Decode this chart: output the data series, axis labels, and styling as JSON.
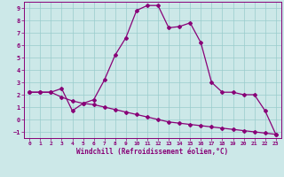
{
  "xlabel": "Windchill (Refroidissement éolien,°C)",
  "bg_color": "#cce8e8",
  "line_color": "#880077",
  "grid_color": "#99cccc",
  "curve1_x": [
    0,
    1,
    2,
    3,
    4,
    5,
    6,
    7,
    8,
    9,
    10,
    11,
    12,
    13,
    14,
    15,
    16,
    17,
    18,
    19,
    20,
    21,
    22,
    23
  ],
  "curve1_y": [
    2.2,
    2.2,
    2.2,
    2.5,
    0.7,
    1.3,
    1.6,
    3.2,
    5.2,
    6.6,
    8.8,
    9.2,
    9.2,
    7.4,
    7.5,
    7.8,
    6.2,
    3.0,
    2.2,
    2.2,
    2.0,
    2.0,
    0.7,
    -1.2
  ],
  "curve2_x": [
    0,
    1,
    2,
    3,
    4,
    5,
    6,
    7,
    8,
    9,
    10,
    11,
    12,
    13,
    14,
    15,
    16,
    17,
    18,
    19,
    20,
    21,
    22,
    23
  ],
  "curve2_y": [
    2.2,
    2.2,
    2.2,
    1.8,
    1.5,
    1.3,
    1.2,
    1.0,
    0.8,
    0.6,
    0.4,
    0.2,
    0.0,
    -0.2,
    -0.3,
    -0.4,
    -0.5,
    -0.6,
    -0.7,
    -0.8,
    -0.9,
    -1.0,
    -1.1,
    -1.2
  ],
  "xlim": [
    -0.5,
    23.5
  ],
  "ylim": [
    -1.5,
    9.5
  ],
  "yticks": [
    -1,
    0,
    1,
    2,
    3,
    4,
    5,
    6,
    7,
    8,
    9
  ],
  "xticks": [
    0,
    1,
    2,
    3,
    4,
    5,
    6,
    7,
    8,
    9,
    10,
    11,
    12,
    13,
    14,
    15,
    16,
    17,
    18,
    19,
    20,
    21,
    22,
    23
  ]
}
